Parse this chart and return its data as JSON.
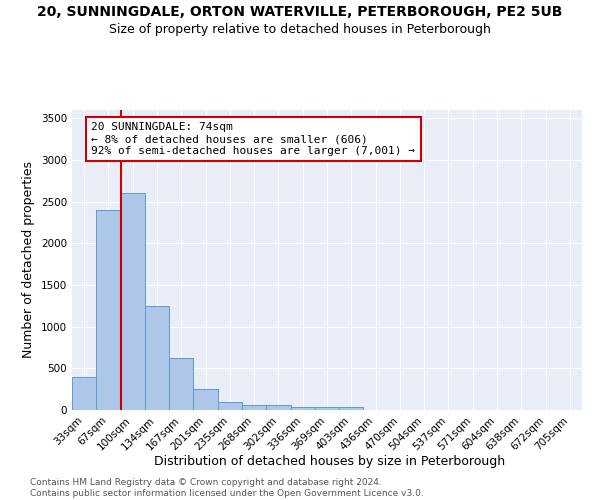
{
  "title1": "20, SUNNINGDALE, ORTON WATERVILLE, PETERBOROUGH, PE2 5UB",
  "title2": "Size of property relative to detached houses in Peterborough",
  "xlabel": "Distribution of detached houses by size in Peterborough",
  "ylabel": "Number of detached properties",
  "categories": [
    "33sqm",
    "67sqm",
    "100sqm",
    "134sqm",
    "167sqm",
    "201sqm",
    "235sqm",
    "268sqm",
    "302sqm",
    "336sqm",
    "369sqm",
    "403sqm",
    "436sqm",
    "470sqm",
    "504sqm",
    "537sqm",
    "571sqm",
    "604sqm",
    "638sqm",
    "672sqm",
    "705sqm"
  ],
  "values": [
    400,
    2400,
    2600,
    1250,
    630,
    250,
    100,
    65,
    55,
    40,
    35,
    35,
    0,
    0,
    0,
    0,
    0,
    0,
    0,
    0,
    0
  ],
  "bar_color": "#aec6e8",
  "bar_edge_color": "#5b9bd5",
  "highlight_line_color": "#cc0000",
  "annotation_text": "20 SUNNINGDALE: 74sqm\n← 8% of detached houses are smaller (606)\n92% of semi-detached houses are larger (7,001) →",
  "annotation_box_color": "#ffffff",
  "annotation_box_edge": "#cc0000",
  "ylim": [
    0,
    3600
  ],
  "yticks": [
    0,
    500,
    1000,
    1500,
    2000,
    2500,
    3000,
    3500
  ],
  "bg_color": "#e8edf8",
  "fig_bg_color": "#ffffff",
  "footer": "Contains HM Land Registry data © Crown copyright and database right 2024.\nContains public sector information licensed under the Open Government Licence v3.0.",
  "title1_fontsize": 10,
  "title2_fontsize": 9,
  "xlabel_fontsize": 9,
  "ylabel_fontsize": 9,
  "tick_fontsize": 7.5,
  "annotation_fontsize": 8,
  "footer_fontsize": 6.5
}
